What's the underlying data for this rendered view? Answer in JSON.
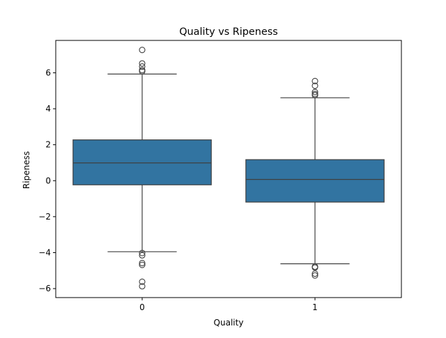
{
  "chart_data": {
    "type": "box",
    "title": "Quality vs Ripeness",
    "xlabel": "Quality",
    "ylabel": "Ripeness",
    "categories": [
      "0",
      "1"
    ],
    "ylim": [
      -6.5,
      7.8
    ],
    "yticks": [
      -6,
      -4,
      -2,
      0,
      2,
      4,
      6
    ],
    "ytick_labels": [
      "−6",
      "−4",
      "−2",
      "0",
      "2",
      "4",
      "6"
    ],
    "grid": false,
    "colors": {
      "box_fill": "#3274a1",
      "line": "#3f3f3f",
      "axis": "#000000"
    },
    "boxes": [
      {
        "category": "0",
        "q1": -0.23,
        "median": 0.99,
        "q3": 2.27,
        "whisker_low": -3.95,
        "whisker_high": 5.93,
        "outliers": [
          7.27,
          6.52,
          6.35,
          6.15,
          6.08,
          -4.02,
          -4.15,
          -4.58,
          -4.68,
          -5.62,
          -5.87
        ]
      },
      {
        "category": "1",
        "q1": -1.19,
        "median": 0.07,
        "q3": 1.17,
        "whisker_low": -4.62,
        "whisker_high": 4.61,
        "outliers": [
          5.54,
          5.28,
          4.93,
          4.82,
          4.75,
          -4.78,
          -4.83,
          -5.17,
          -5.27
        ]
      }
    ]
  }
}
